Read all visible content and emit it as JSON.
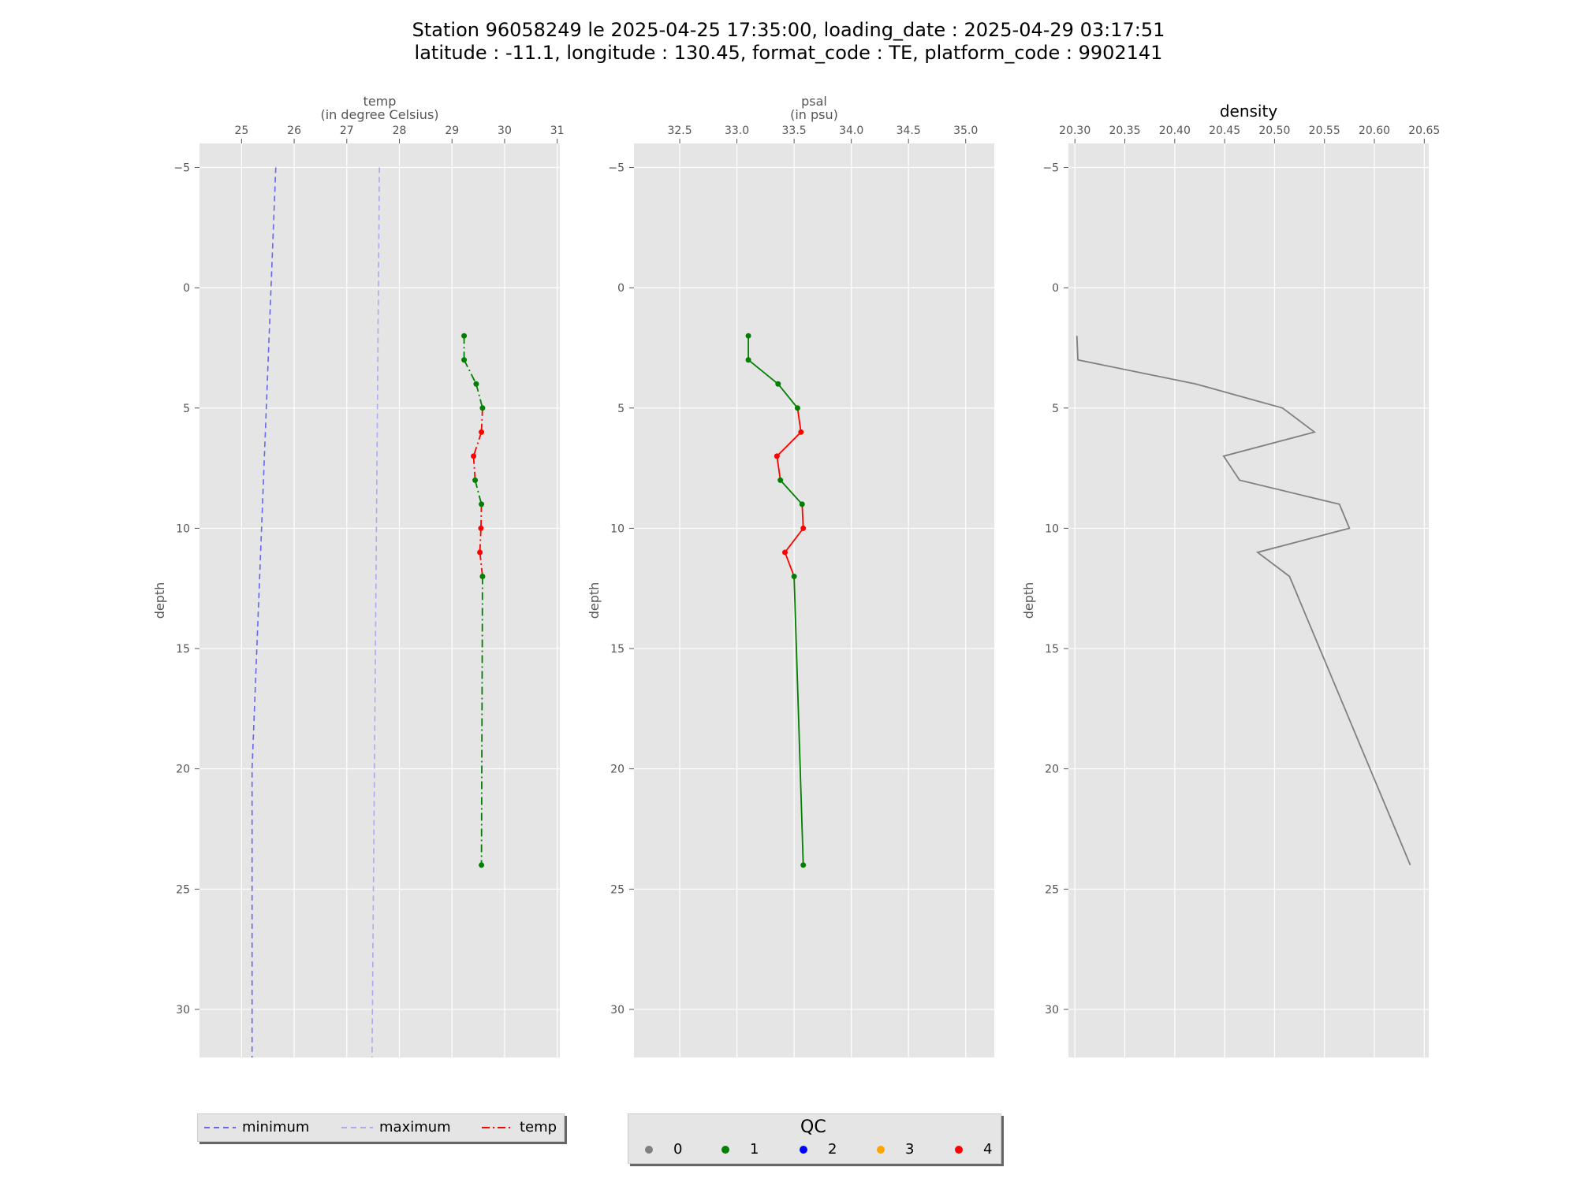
{
  "title": {
    "line1": "Station 96058249 le 2025-04-25 17:35:00, loading_date : 2025-04-29 03:17:51",
    "line2": "latitude : -11.1, longitude : 130.45, format_code : TE, platform_code : 9902141"
  },
  "colors": {
    "panel_bg": "#e5e5e5",
    "grid": "#ffffff",
    "tick_text": "#555555",
    "minimum": "#6666ee",
    "maximum": "#aaaaee",
    "qc0": "#808080",
    "qc1": "#007f00",
    "qc2": "#0000ff",
    "qc3": "#ffa500",
    "qc4": "#ff0000",
    "density_line": "#808080"
  },
  "chart_data": [
    {
      "type": "line",
      "panel": "temp",
      "xlabel_line1": "temp",
      "xlabel_line2": "(in degree Celsius)",
      "ylabel": "depth",
      "xticks": [
        "25",
        "26",
        "27",
        "28",
        "29",
        "30",
        "31"
      ],
      "xlim": [
        24.2,
        31.05
      ],
      "yticks": [
        "−5",
        "0",
        "5",
        "10",
        "15",
        "20",
        "25",
        "30"
      ],
      "ylim": [
        -6,
        32
      ],
      "y_inverted": true,
      "grid": true,
      "series": [
        {
          "name": "minimum",
          "style": "dashed",
          "color": "minimum",
          "x": [
            25.65,
            25.2,
            25.2
          ],
          "y": [
            -5,
            20,
            32
          ]
        },
        {
          "name": "maximum",
          "style": "dashed",
          "color": "maximum",
          "x": [
            27.62,
            27.48
          ],
          "y": [
            -5,
            32
          ]
        },
        {
          "name": "temp",
          "style": "dashdot",
          "depth": [
            2,
            3,
            4,
            5,
            6,
            7,
            8,
            9,
            10,
            11,
            12,
            24
          ],
          "values": [
            29.23,
            29.23,
            29.46,
            29.58,
            29.56,
            29.41,
            29.44,
            29.56,
            29.55,
            29.53,
            29.58,
            29.56
          ],
          "qc": [
            1,
            1,
            1,
            1,
            4,
            4,
            1,
            1,
            4,
            4,
            1,
            1
          ]
        }
      ]
    },
    {
      "type": "line",
      "panel": "psal",
      "xlabel_line1": "psal",
      "xlabel_line2": "(in psu)",
      "ylabel": "depth",
      "xticks": [
        "32.5",
        "33.0",
        "33.5",
        "34.0",
        "34.5",
        "35.0"
      ],
      "xlim": [
        32.1,
        35.25
      ],
      "yticks": [
        "−5",
        "0",
        "5",
        "10",
        "15",
        "20",
        "25",
        "30"
      ],
      "ylim": [
        -6,
        32
      ],
      "y_inverted": true,
      "grid": true,
      "series": [
        {
          "name": "psal",
          "style": "solid",
          "depth": [
            2,
            3,
            4,
            5,
            6,
            7,
            8,
            9,
            10,
            11,
            12,
            24
          ],
          "values": [
            33.1,
            33.1,
            33.36,
            33.53,
            33.56,
            33.35,
            33.38,
            33.57,
            33.58,
            33.42,
            33.5,
            33.58
          ],
          "qc": [
            1,
            1,
            1,
            1,
            4,
            4,
            1,
            1,
            4,
            4,
            1,
            1
          ]
        }
      ]
    },
    {
      "type": "line",
      "panel": "density",
      "title": "density",
      "ylabel": "depth",
      "xticks": [
        "20.30",
        "20.35",
        "20.40",
        "20.45",
        "20.50",
        "20.55",
        "20.60",
        "20.65"
      ],
      "xlim": [
        20.2935,
        20.6545
      ],
      "yticks": [
        "−5",
        "0",
        "5",
        "10",
        "15",
        "20",
        "25",
        "30"
      ],
      "ylim": [
        -6,
        32
      ],
      "y_inverted": true,
      "grid": true,
      "series": [
        {
          "name": "density",
          "style": "solid",
          "depth": [
            2,
            3,
            4,
            5,
            6,
            7,
            8,
            9,
            10,
            11,
            12,
            24
          ],
          "values": [
            20.302,
            20.303,
            20.421,
            20.508,
            20.54,
            20.449,
            20.465,
            20.565,
            20.575,
            20.483,
            20.515,
            20.636
          ]
        }
      ]
    }
  ],
  "legend_lines": {
    "items": [
      {
        "label": "minimum",
        "color": "minimum",
        "style": "dashed"
      },
      {
        "label": "maximum",
        "color": "maximum",
        "style": "dashed"
      },
      {
        "label": "temp",
        "color": "qc4",
        "style": "dashdot"
      }
    ]
  },
  "legend_qc": {
    "title": "QC",
    "items": [
      {
        "label": "0",
        "color": "qc0"
      },
      {
        "label": "1",
        "color": "qc1"
      },
      {
        "label": "2",
        "color": "qc2"
      },
      {
        "label": "3",
        "color": "qc3"
      },
      {
        "label": "4",
        "color": "qc4"
      }
    ]
  }
}
